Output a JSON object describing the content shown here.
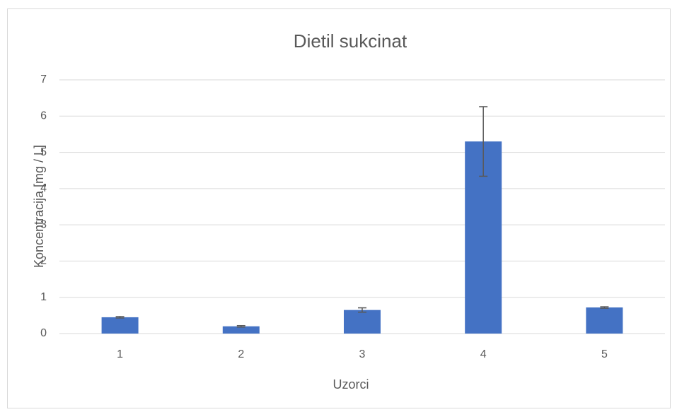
{
  "chart_data": {
    "type": "bar",
    "title": "Dietil sukcinat",
    "x_label": "Uzorci",
    "y_label": "Koncentracija [mg / L]",
    "categories": [
      "1",
      "2",
      "3",
      "4",
      "5"
    ],
    "values": [
      0.45,
      0.2,
      0.65,
      5.3,
      0.72
    ],
    "errors": [
      0.02,
      0.02,
      0.06,
      0.96,
      0.02
    ],
    "color": "#4472c4",
    "error_color": "#595959",
    "ylim": [
      0,
      7
    ],
    "yticks": [
      0,
      1,
      2,
      3,
      4,
      5,
      6,
      7
    ],
    "grid": true
  }
}
